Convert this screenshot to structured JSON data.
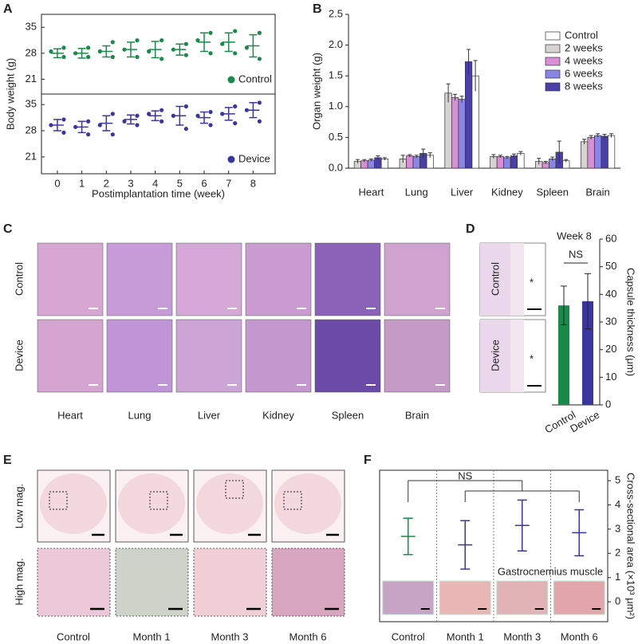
{
  "panel_labels": [
    "A",
    "B",
    "C",
    "D",
    "E",
    "F"
  ],
  "chart_data": [
    {
      "type": "errorbar",
      "ylabel": "Body weight (g)",
      "x": [
        0,
        1,
        2,
        3,
        4,
        5,
        6,
        7,
        8
      ],
      "xlim": [
        -0.65,
        8.9
      ],
      "ylim": [
        17,
        38.5
      ],
      "yticks": [
        21,
        28,
        35
      ],
      "series": [
        {
          "name": "Control",
          "color": "#1a8a4a",
          "values": [
            28,
            28,
            28.5,
            29,
            29,
            29,
            31,
            31,
            30
          ],
          "errors": [
            1.2,
            1.3,
            1.5,
            2,
            2.2,
            1.5,
            2.5,
            2.5,
            3
          ],
          "points": [
            [
              29.5,
              28.5,
              27
            ],
            [
              29.5,
              28,
              27
            ],
            [
              31,
              28.5,
              27
            ],
            [
              31.5,
              29,
              27
            ],
            [
              31.5,
              28.5,
              26.5
            ],
            [
              30.5,
              29,
              27.5
            ],
            [
              33.5,
              31.5,
              28
            ],
            [
              34,
              30.5,
              28
            ],
            [
              33.5,
              29.5,
              26.5
            ]
          ]
        }
      ]
    },
    {
      "type": "errorbar",
      "xlabel": "Postimplantation time (week)",
      "x": [
        0,
        1,
        2,
        3,
        4,
        5,
        6,
        7,
        8
      ],
      "xlim": [
        -0.65,
        8.9
      ],
      "ylim": [
        16.5,
        37.8
      ],
      "xticks": [
        0,
        1,
        2,
        3,
        4,
        5,
        6,
        7,
        8
      ],
      "yticks": [
        21,
        28,
        35
      ],
      "series": [
        {
          "name": "Device",
          "color": "#3b35a0",
          "values": [
            29.5,
            29,
            30,
            31,
            32,
            32,
            31.5,
            32.5,
            33.5
          ],
          "errors": [
            1.5,
            1.5,
            2,
            1.2,
            1.3,
            2.5,
            1.5,
            1.7,
            2
          ],
          "points": [
            [
              31,
              29.5,
              27.5
            ],
            [
              30.5,
              29,
              27
            ],
            [
              32.5,
              29.5,
              27
            ],
            [
              32,
              30.5,
              29.5
            ],
            [
              33.5,
              32.5,
              30.5
            ],
            [
              34.5,
              32,
              28.5
            ],
            [
              33,
              32,
              29.5
            ],
            [
              34.5,
              32.5,
              30
            ],
            [
              35.5,
              33.5,
              30.5
            ]
          ]
        }
      ]
    },
    {
      "type": "bar",
      "ylabel": "Organ weight (g)",
      "categories": [
        "Heart",
        "Lung",
        "Liver",
        "Kidney",
        "Spleen",
        "Brain"
      ],
      "ylim": [
        0,
        2.5
      ],
      "yticks": [
        {
          "value": 0,
          "label": "0.0"
        },
        0.5,
        {
          "value": 1,
          "label": "1.0"
        },
        1.5,
        {
          "value": 2,
          "label": "2.0"
        },
        2.5
      ],
      "series": [
        {
          "name": "Control",
          "color": "#ffffff",
          "values": [
            0.15,
            0.21,
            1.5,
            0.24,
            0.12,
            0.53
          ],
          "errors": [
            0.02,
            0.04,
            0.25,
            0.03,
            0.02,
            0.03
          ]
        },
        {
          "name": "2 weeks",
          "color": "#d9d2d2",
          "values": [
            0.11,
            0.15,
            1.22,
            0.19,
            0.11,
            0.43
          ],
          "errors": [
            0.03,
            0.06,
            0.15,
            0.03,
            0.05,
            0.04
          ]
        },
        {
          "name": "4 weeks",
          "color": "#d98fd6",
          "values": [
            0.12,
            0.2,
            1.15,
            0.19,
            0.09,
            0.5
          ],
          "errors": [
            0.02,
            0.02,
            0.05,
            0.02,
            0.02,
            0.03
          ]
        },
        {
          "name": "6 weeks",
          "color": "#8a86e6",
          "values": [
            0.13,
            0.19,
            1.12,
            0.17,
            0.15,
            0.53
          ],
          "errors": [
            0.02,
            0.02,
            0.05,
            0.02,
            0.03,
            0.03
          ]
        },
        {
          "name": "8 weeks",
          "color": "#4a3fa8",
          "values": [
            0.17,
            0.24,
            1.73,
            0.2,
            0.26,
            0.52
          ],
          "errors": [
            0.03,
            0.07,
            0.2,
            0.03,
            0.18,
            0.03
          ]
        }
      ]
    },
    {
      "type": "bar",
      "title": "Week 8",
      "annotation": "NS",
      "ylabel": "Capsule thickness (μm)",
      "categories": [
        "Control",
        "Device"
      ],
      "values": [
        36,
        37.5
      ],
      "errors": [
        7,
        10
      ],
      "colors": [
        "#1a8a4a",
        "#3b35a0"
      ],
      "ylim": [
        0,
        60
      ],
      "yticks": [
        0,
        10,
        20,
        30,
        40,
        50,
        60
      ]
    },
    {
      "type": "errorbar",
      "annotations": [
        "NS",
        "Gastrocnemius muscle"
      ],
      "ylabel": "Cross-sectional area (×10³ μm²)",
      "categories": [
        "Control",
        "Month 1",
        "Month 3",
        "Month 6"
      ],
      "values": [
        2.7,
        2.35,
        3.15,
        2.85
      ],
      "errors": [
        0.75,
        1.0,
        1.05,
        0.95
      ],
      "colors": [
        "#1a8a4a",
        "#3b35a0",
        "#3b35a0",
        "#3b35a0"
      ],
      "ylim": [
        -0.82,
        5.43
      ],
      "yticks": [
        0,
        1,
        2,
        3,
        4,
        5
      ]
    }
  ],
  "panel_c": {
    "rows": [
      "Control",
      "Device"
    ],
    "columns": [
      "Heart",
      "Lung",
      "Liver",
      "Kidney",
      "Spleen",
      "Brain"
    ]
  },
  "panel_d": {
    "rows": [
      "Control",
      "Device"
    ]
  },
  "panel_e": {
    "rows": [
      "Low mag.",
      "High mag."
    ],
    "columns": [
      "Control",
      "Month 1",
      "Month 3",
      "Month 6"
    ]
  }
}
